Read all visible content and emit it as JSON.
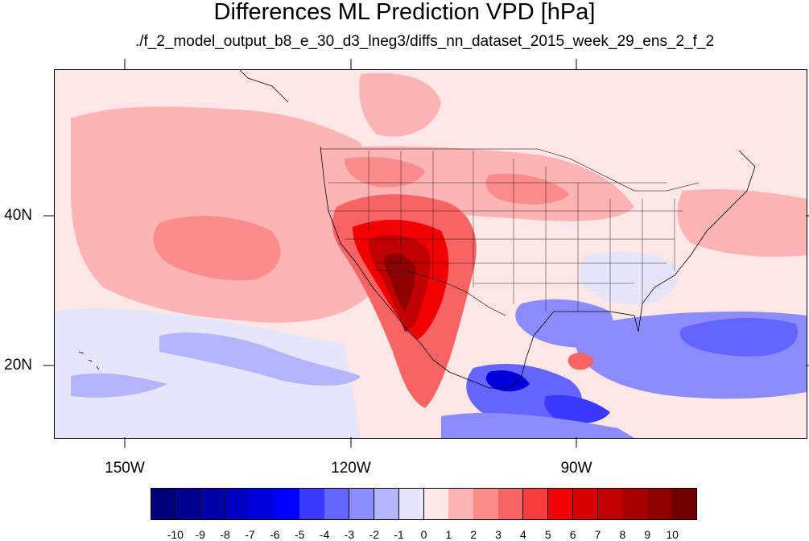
{
  "title": "Differences ML Prediction VPD [hPa]",
  "subtitle": "./f_2_model_output_b8_e_30_d3_lneg3/diffs_nn_dataset_2015_week_29_ens_2_f_2",
  "lon_labels": [
    "150W",
    "120W",
    "90W"
  ],
  "lat_labels": [
    "40N",
    "20N"
  ],
  "colorbar": {
    "labels": [
      "-10",
      "-9",
      "-8",
      "-7",
      "-6",
      "-5",
      "-4",
      "-3",
      "-2",
      "-1",
      "0",
      "1",
      "2",
      "3",
      "4",
      "5",
      "6",
      "7",
      "8",
      "9",
      "10"
    ],
    "colors": [
      "#00007a",
      "#000090",
      "#0000a8",
      "#0000c4",
      "#0000dc",
      "#0000ff",
      "#3a3aff",
      "#6464ff",
      "#8c8cff",
      "#b4b4ff",
      "#e6e6fa",
      "#fde6e6",
      "#fcb4b4",
      "#fa8c8c",
      "#f86464",
      "#f63c3c",
      "#f00000",
      "#d80000",
      "#c00000",
      "#a80000",
      "#8c0000",
      "#6e0000"
    ]
  },
  "map_data": {
    "region_lon": [
      -160,
      -62
    ],
    "region_lat": [
      10,
      60
    ],
    "background_color": "#fde6e6",
    "features": [
      {
        "name": "pacific-moderate-positive",
        "color": "#fcb4b4"
      },
      {
        "name": "southwest-us-strong-positive",
        "color": "#d80000"
      },
      {
        "name": "mexico-negative",
        "color": "#3a3aff"
      },
      {
        "name": "gulf-negative",
        "color": "#6464ff"
      },
      {
        "name": "atlantic-negative",
        "color": "#8c8cff"
      },
      {
        "name": "east-pacific-weak-negative",
        "color": "#b4b4ff"
      }
    ]
  }
}
